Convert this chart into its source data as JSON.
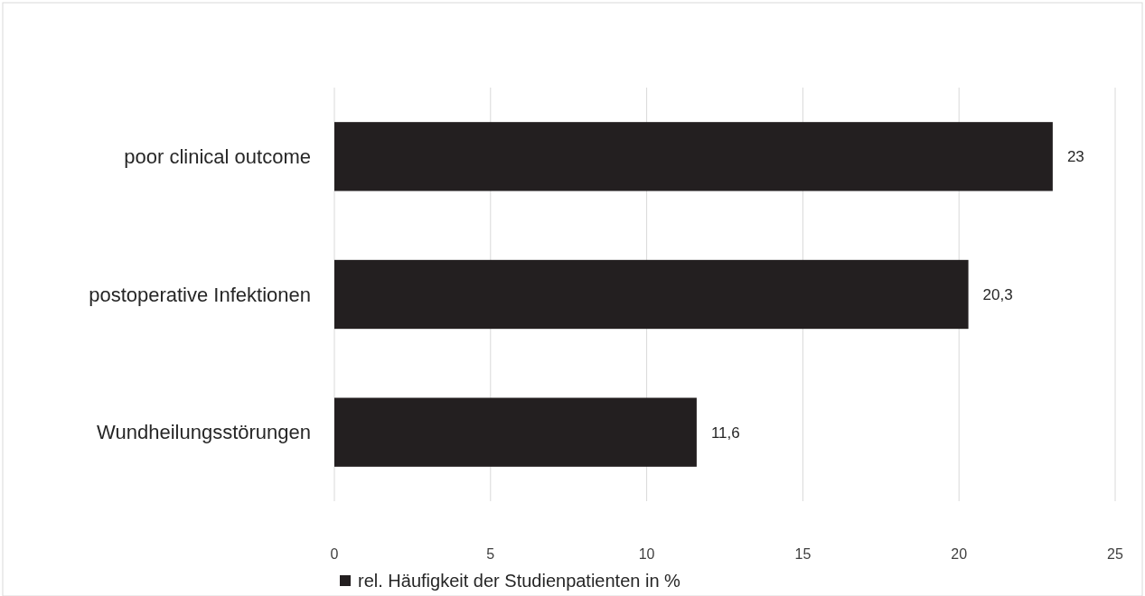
{
  "chart_data": {
    "type": "bar",
    "orientation": "horizontal",
    "categories": [
      "poor clinical outcome",
      "postoperative Infektionen",
      "Wundheilungsstörungen"
    ],
    "series": [
      {
        "name": "rel. Häufigkeit der Studienpatienten in %",
        "color": "#231f20",
        "values": [
          23,
          20.3,
          11.6
        ],
        "value_labels": [
          "23",
          "20,3",
          "11,6"
        ]
      }
    ],
    "xlim": [
      0,
      25
    ],
    "xticks": [
      0,
      5,
      10,
      15,
      20,
      25
    ],
    "grid": "x",
    "legend": "bottom"
  }
}
